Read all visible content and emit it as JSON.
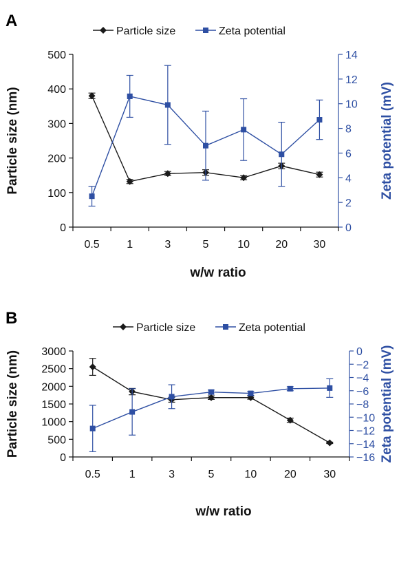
{
  "colors": {
    "particle": "#1a1a1a",
    "zeta": "#2e4fa3",
    "axis": "#111111"
  },
  "chart_data": [
    {
      "panel": "A",
      "type": "line",
      "categories": [
        "0.5",
        "1",
        "3",
        "5",
        "10",
        "20",
        "30"
      ],
      "xlabel": "w/w ratio",
      "ylabel": "Particle size (nm)",
      "y2label": "Zeta potential (mV)",
      "ylim": [
        0,
        500
      ],
      "yticks": [
        0,
        100,
        200,
        300,
        400,
        500
      ],
      "y2lim": [
        0,
        14
      ],
      "y2ticks": [
        0,
        2,
        4,
        6,
        8,
        10,
        12,
        14
      ],
      "legend_position": "top",
      "series": [
        {
          "name": "Particle size",
          "axis": "left",
          "marker": "diamond",
          "values": [
            380,
            132,
            155,
            158,
            143,
            177,
            152
          ],
          "errors": [
            8,
            6,
            6,
            8,
            6,
            8,
            7
          ]
        },
        {
          "name": "Zeta potential",
          "axis": "right",
          "marker": "square",
          "values": [
            2.5,
            10.6,
            9.9,
            6.6,
            7.9,
            5.9,
            8.7
          ],
          "errors": [
            0.8,
            1.7,
            3.2,
            2.8,
            2.5,
            2.6,
            1.6
          ]
        }
      ]
    },
    {
      "panel": "B",
      "type": "line",
      "categories": [
        "0.5",
        "1",
        "3",
        "5",
        "10",
        "20",
        "30"
      ],
      "xlabel": "w/w ratio",
      "ylabel": "Particle size (nm)",
      "y2label": "Zeta potential (mV)",
      "ylim": [
        0,
        3000
      ],
      "yticks": [
        0,
        500,
        1000,
        1500,
        2000,
        2500,
        3000
      ],
      "y2lim": [
        -16,
        0
      ],
      "y2ticks": [
        -16,
        -14,
        -12,
        -10,
        -8,
        -6,
        -4,
        -2,
        0
      ],
      "legend_position": "top",
      "series": [
        {
          "name": "Particle size",
          "axis": "left",
          "marker": "diamond",
          "values": [
            2550,
            1850,
            1620,
            1680,
            1680,
            1040,
            400
          ],
          "errors": [
            240,
            90,
            70,
            50,
            45,
            60,
            20
          ]
        },
        {
          "name": "Zeta potential",
          "axis": "right",
          "marker": "square",
          "values": [
            -11.7,
            -9.2,
            -6.9,
            -6.2,
            -6.4,
            -5.7,
            -5.6
          ],
          "errors": [
            3.5,
            3.5,
            1.8,
            0.3,
            0.3,
            0.3,
            1.4
          ]
        }
      ]
    }
  ]
}
